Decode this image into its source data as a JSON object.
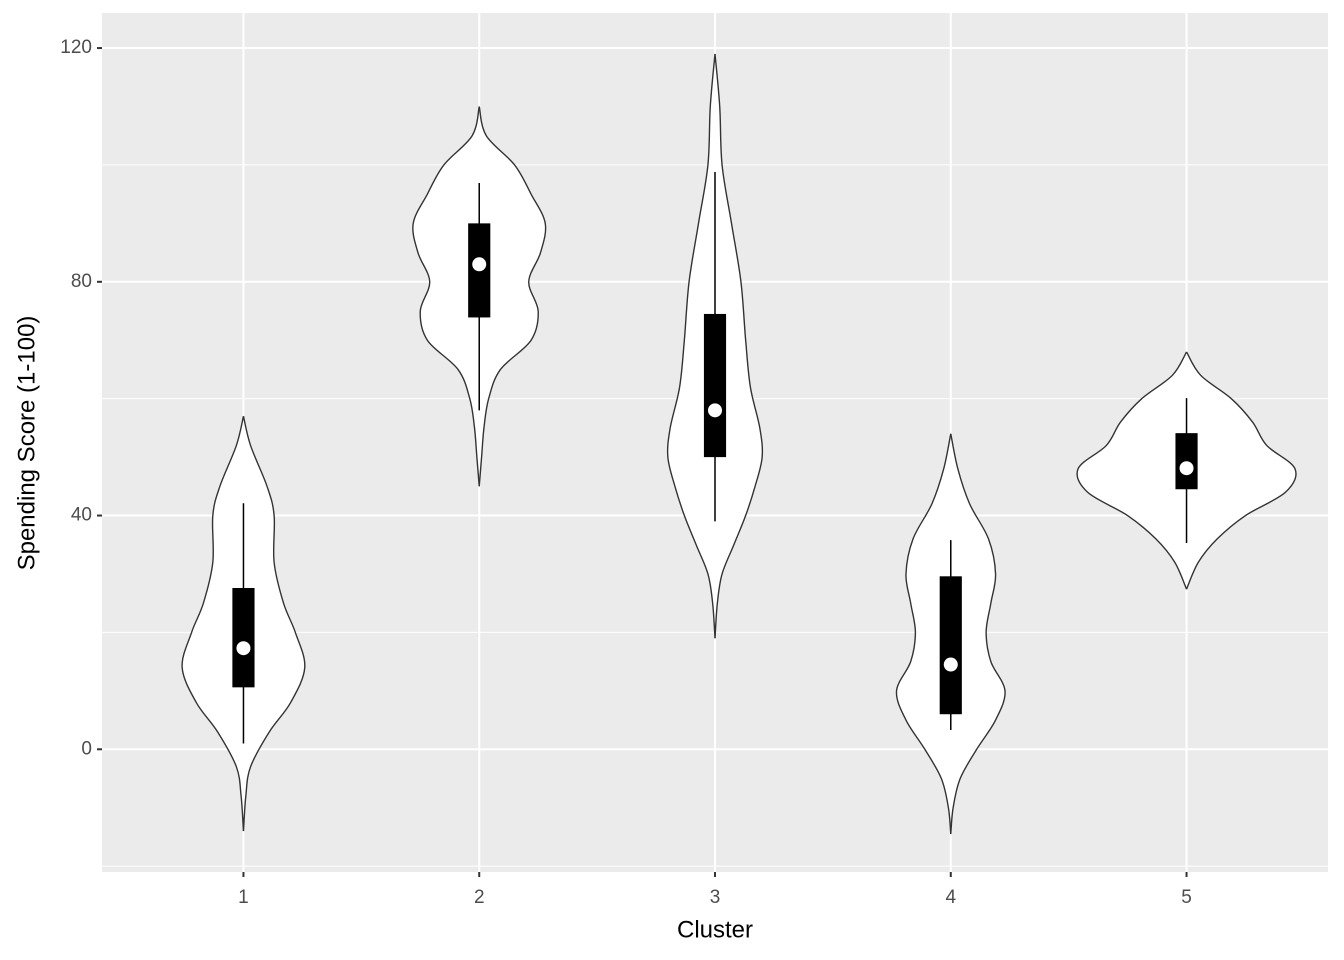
{
  "chart_data": {
    "type": "violin",
    "x_label": "Cluster",
    "y_label": "Spending Score (1-100)",
    "categories": [
      "1",
      "2",
      "3",
      "4",
      "5"
    ],
    "ylim": [
      -21,
      126
    ],
    "yticks": [
      0,
      40,
      80,
      120
    ],
    "minor_gridlines": [
      -20,
      20,
      60,
      100
    ],
    "grid": true,
    "violin_color": "#ffffff",
    "outline_color": "#333333",
    "box_color": "#000000",
    "median_color": "#ffffff",
    "violins": [
      {
        "y": [
          57,
          52,
          45,
          40,
          32,
          25,
          20,
          14,
          8,
          3,
          -3,
          -8,
          -14
        ],
        "halfwidth": [
          0,
          0.03,
          0.1,
          0.13,
          0.13,
          0.17,
          0.22,
          0.26,
          0.2,
          0.11,
          0.03,
          0.01,
          0
        ],
        "whisker_low": 1.0,
        "q1": 10.6,
        "median": 17.3,
        "q3": 27.6,
        "whisker_high": 42.1
      },
      {
        "y": [
          110,
          105,
          100,
          95,
          90,
          85,
          80,
          75,
          70,
          65,
          60,
          55,
          50,
          45
        ],
        "halfwidth": [
          0,
          0.03,
          0.15,
          0.22,
          0.28,
          0.26,
          0.21,
          0.25,
          0.22,
          0.09,
          0.04,
          0.02,
          0.01,
          0
        ],
        "whisker_low": 58.0,
        "q1": 73.9,
        "median": 83.0,
        "q3": 90.0,
        "whisker_high": 96.9
      },
      {
        "y": [
          119,
          110,
          100,
          90,
          80,
          70,
          62,
          55,
          50,
          45,
          40,
          35,
          30,
          25,
          19
        ],
        "halfwidth": [
          0,
          0.02,
          0.03,
          0.07,
          0.11,
          0.13,
          0.15,
          0.19,
          0.2,
          0.17,
          0.13,
          0.08,
          0.03,
          0.01,
          0
        ],
        "whisker_low": 39.0,
        "q1": 50.0,
        "median": 58.0,
        "q3": 74.5,
        "whisker_high": 98.8
      },
      {
        "y": [
          54,
          48,
          42,
          36,
          30,
          25,
          20,
          15,
          10,
          5,
          0,
          -5,
          -10,
          -14.5
        ],
        "halfwidth": [
          0,
          0.03,
          0.08,
          0.16,
          0.19,
          0.17,
          0.15,
          0.17,
          0.23,
          0.19,
          0.11,
          0.04,
          0.01,
          0
        ],
        "whisker_low": 3.3,
        "q1": 6.0,
        "median": 14.5,
        "q3": 29.6,
        "whisker_high": 35.8
      },
      {
        "y": [
          68,
          64,
          60,
          56,
          52,
          48,
          44,
          40,
          36,
          32,
          27.4
        ],
        "halfwidth": [
          0,
          0.06,
          0.19,
          0.28,
          0.34,
          0.46,
          0.42,
          0.25,
          0.13,
          0.05,
          0
        ],
        "whisker_low": 35.3,
        "q1": 44.5,
        "median": 48.1,
        "q3": 54.1,
        "whisker_high": 60.1
      }
    ]
  }
}
